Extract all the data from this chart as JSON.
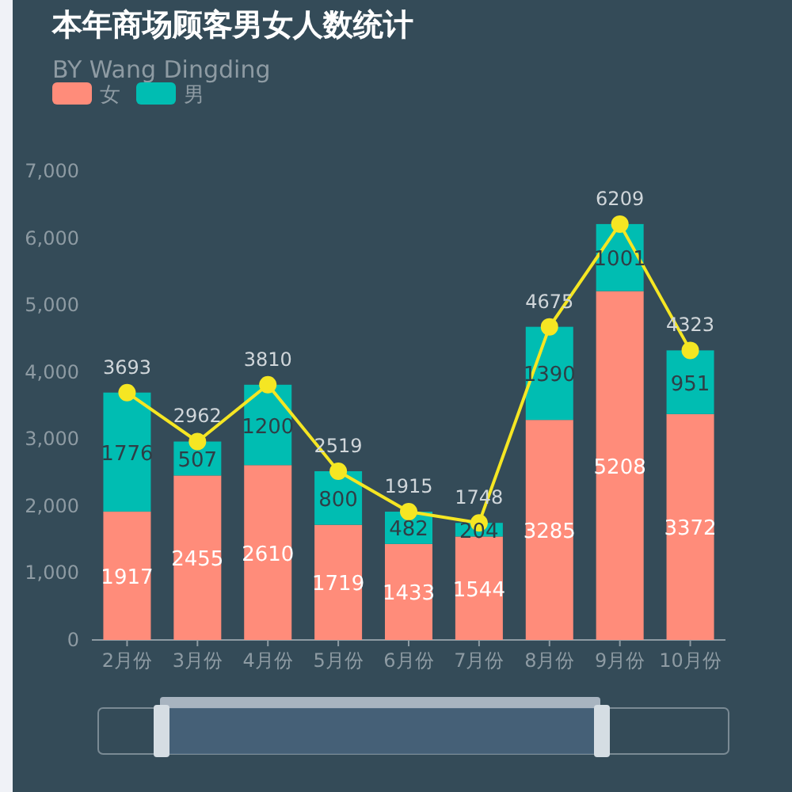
{
  "chart_data": {
    "type": "bar",
    "title": "本年商场顾客男女人数统计",
    "subtitle": "BY Wang Dingding",
    "categories": [
      "2月份",
      "3月份",
      "4月份",
      "5月份",
      "6月份",
      "7月份",
      "8月份",
      "9月份",
      "10月份"
    ],
    "stacked": true,
    "data_labels": true,
    "legend": "top left",
    "grid": false,
    "ylim": [
      0,
      7000
    ],
    "yticks": [
      0,
      {
        "value": 1000,
        "label": "1,000"
      },
      {
        "value": 2000,
        "label": "2,000"
      },
      {
        "value": 3000,
        "label": "3,000"
      },
      {
        "value": 4000,
        "label": "4,000"
      },
      {
        "value": 5000,
        "label": "5,000"
      },
      {
        "value": 6000,
        "label": "6,000"
      },
      {
        "value": 7000,
        "label": "7,000"
      }
    ],
    "series": [
      {
        "name": "女",
        "color": "#ff8c7a",
        "values": [
          1917,
          2455,
          2610,
          1719,
          1433,
          1544,
          3285,
          5208,
          3372
        ]
      },
      {
        "name": "男",
        "color": "#00bdb2",
        "values": [
          1776,
          507,
          1200,
          800,
          482,
          204,
          1390,
          1001,
          951
        ]
      },
      {
        "type": "line",
        "color": "#f5e623",
        "marker": "circle",
        "values": [
          3693,
          2962,
          3810,
          2519,
          1915,
          1748,
          4675,
          6209,
          4323
        ]
      }
    ]
  }
}
